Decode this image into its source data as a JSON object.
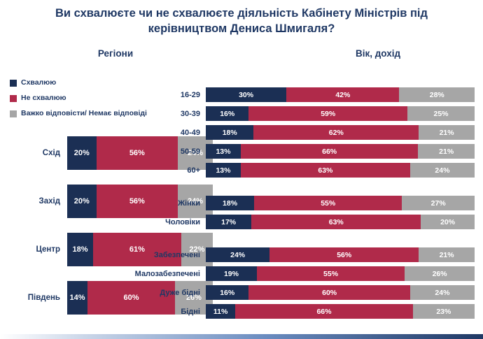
{
  "title": "Ви схвалюєте чи не схвалюєте діяльність Кабінету Міністрів під керівництвом Дениса Шмигаля?",
  "colors": {
    "title_text": "#1f3864",
    "approve": "#1b2f54",
    "disapprove": "#b02a4a",
    "no_answer": "#a6a6a6"
  },
  "legend": {
    "items": [
      {
        "key": "approve",
        "label": "Схвалюю"
      },
      {
        "key": "disapprove",
        "label": "Не схвалюю"
      },
      {
        "key": "no_answer",
        "label": "Важко відповісти/ Немає відповіді"
      }
    ]
  },
  "chart_data": [
    {
      "type": "bar",
      "orientation": "horizontal",
      "stacked": true,
      "value_format": "percent",
      "x_range": [
        0,
        100
      ],
      "title": "Регіони",
      "series_keys": [
        "approve",
        "disapprove",
        "no_answer"
      ],
      "series_names": [
        "Схвалюю",
        "Не схвалюю",
        "Важко відповісти/ Немає відповіді"
      ],
      "rows": [
        {
          "label": "Схід",
          "values": [
            20,
            56,
            24
          ]
        },
        {
          "label": "Захід",
          "values": [
            20,
            56,
            24
          ]
        },
        {
          "label": "Центр",
          "values": [
            18,
            61,
            22
          ]
        },
        {
          "label": "Південь",
          "values": [
            14,
            60,
            26
          ]
        }
      ]
    },
    {
      "type": "bar",
      "orientation": "horizontal",
      "stacked": true,
      "value_format": "percent",
      "x_range": [
        0,
        100
      ],
      "title": "Вік, дохід",
      "series_keys": [
        "approve",
        "disapprove",
        "no_answer"
      ],
      "series_names": [
        "Схвалюю",
        "Не схвалюю",
        "Важко відповісти/ Немає відповіді"
      ],
      "groups": [
        {
          "rows": [
            {
              "label": "16-29",
              "values": [
                30,
                42,
                28
              ]
            },
            {
              "label": "30-39",
              "values": [
                16,
                59,
                25
              ]
            },
            {
              "label": "40-49",
              "values": [
                18,
                62,
                21
              ]
            },
            {
              "label": "50-59",
              "values": [
                13,
                66,
                21
              ]
            },
            {
              "label": "60+",
              "values": [
                13,
                63,
                24
              ]
            }
          ]
        },
        {
          "rows": [
            {
              "label": "Жінки",
              "values": [
                18,
                55,
                27
              ]
            },
            {
              "label": "Чоловіки",
              "values": [
                17,
                63,
                20
              ]
            }
          ]
        },
        {
          "rows": [
            {
              "label": "Забезпечені",
              "values": [
                24,
                56,
                21
              ]
            },
            {
              "label": "Малозабезпечені",
              "values": [
                19,
                55,
                26
              ]
            },
            {
              "label": "Дуже бідні",
              "values": [
                16,
                60,
                24
              ]
            },
            {
              "label": "Бідні",
              "values": [
                11,
                66,
                23
              ]
            }
          ]
        }
      ]
    }
  ]
}
